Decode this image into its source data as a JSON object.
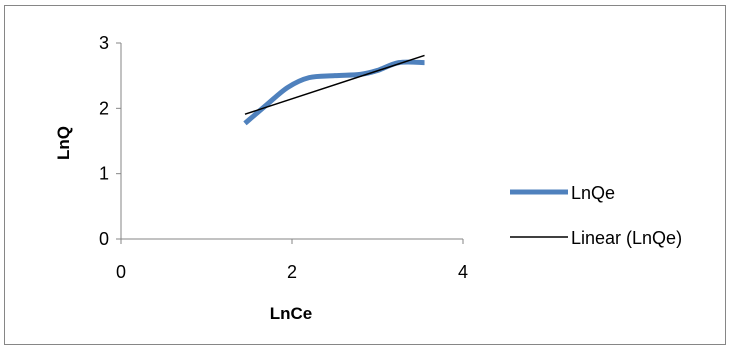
{
  "chart_data": {
    "type": "line",
    "xlabel": "LnCe",
    "ylabel": "LnQ",
    "xlim": [
      0,
      4
    ],
    "ylim": [
      0,
      3
    ],
    "xticks": [
      "0",
      "2",
      "4"
    ],
    "yticks": [
      "0",
      "1",
      "2",
      "3"
    ],
    "grid": false,
    "legend_position": "right",
    "series": [
      {
        "name": "LnQe",
        "color": "#4f81bd",
        "x": [
          1.45,
          1.7,
          1.95,
          2.2,
          2.5,
          2.8,
          3.0,
          3.25,
          3.55
        ],
        "y": [
          1.77,
          2.05,
          2.32,
          2.47,
          2.5,
          2.52,
          2.58,
          2.7,
          2.7
        ]
      }
    ],
    "trendline": {
      "name": "Linear (LnQe)",
      "color": "#000000",
      "x": [
        1.45,
        3.55
      ],
      "y": [
        1.91,
        2.81
      ]
    }
  }
}
